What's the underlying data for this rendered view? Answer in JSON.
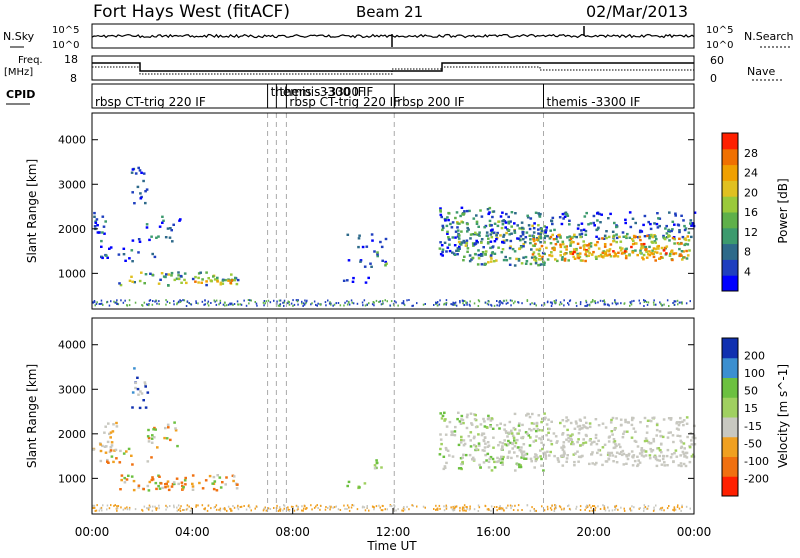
{
  "header": {
    "station": "Fort Hays West (fitACF)",
    "beam": "Beam 21",
    "date": "02/Mar/2013"
  },
  "noise_panel": {
    "left_label": "N.Sky",
    "right_label": "N.Search",
    "left_ticks": [
      "10^5",
      "10^0"
    ],
    "right_ticks": [
      "10^5",
      "10^0"
    ]
  },
  "freq_panel": {
    "left_label_top": "Freq.",
    "left_label_unit": "[MHz]",
    "left_ticks": [
      "18",
      "8"
    ],
    "right_label": "Nave",
    "right_ticks": [
      "60",
      "0"
    ]
  },
  "cpid_panel": {
    "label": "CPID",
    "segments": [
      {
        "start": 0.0,
        "label": "rbsp CT-trig 220 IF"
      },
      {
        "start": 7.0,
        "label": "themis -3300 IF"
      },
      {
        "start": 7.35,
        "label": "themis -3300 IF"
      },
      {
        "start": 7.75,
        "label": "rbsp CT-trig 220 IF"
      },
      {
        "start": 12.05,
        "label": "rbsp 200 IF"
      },
      {
        "start": 18.0,
        "label": "themis -3300 IF"
      }
    ]
  },
  "chart_data": [
    {
      "type": "heatmap",
      "name": "power",
      "ylabel": "Slant Range [km]",
      "ylim": [
        200,
        4600
      ],
      "yticks": [
        "1000",
        "2000",
        "3000",
        "4000"
      ],
      "colorbar_label": "Power [dB]",
      "colorbar_ticks": [
        "4",
        "8",
        "12",
        "16",
        "20",
        "24",
        "28"
      ],
      "colorbar_range": [
        0,
        32
      ]
    },
    {
      "type": "heatmap",
      "name": "velocity",
      "ylabel": "Slant Range [km]",
      "ylim": [
        200,
        4600
      ],
      "yticks": [
        "1000",
        "2000",
        "3000",
        "4000"
      ],
      "colorbar_label": "Velocity [m s^-1]",
      "colorbar_ticks": [
        "200",
        "100",
        "50",
        "15",
        "-15",
        "-50",
        "-100",
        "-200"
      ]
    }
  ],
  "time_axis": {
    "xlabel": "Time UT",
    "xlim": [
      0,
      24
    ],
    "ticks": [
      "00:00",
      "04:00",
      "08:00",
      "12:00",
      "16:00",
      "20:00",
      "00:00"
    ],
    "dashed_markers": [
      7.0,
      7.35,
      7.75,
      12.05,
      18.0
    ]
  },
  "colors": {
    "power": [
      "#0000ff",
      "#1f3fbf",
      "#2e6a8a",
      "#3c9a6e",
      "#5fb04a",
      "#9ac93a",
      "#e0c020",
      "#f0a000",
      "#f07000",
      "#ff2000"
    ],
    "velocity": [
      "#1030b0",
      "#3b8fd0",
      "#6cc040",
      "#a0d060",
      "#c8c8c0",
      "#f0a020",
      "#f07010",
      "#ff2000"
    ]
  }
}
